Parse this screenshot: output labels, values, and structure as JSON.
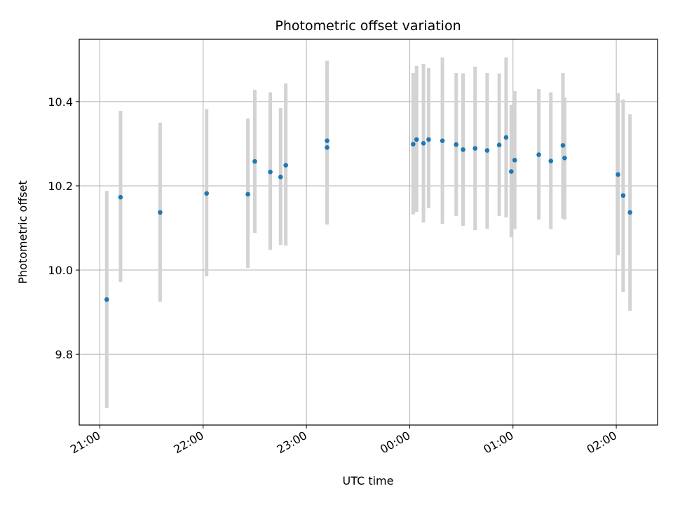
{
  "chart_data": {
    "type": "scatter",
    "title": "Photometric offset variation",
    "xlabel": "UTC time",
    "ylabel": "Photometric offset",
    "x_axis_kind": "time",
    "x_ticks": [
      "21:00",
      "22:00",
      "23:00",
      "00:00",
      "01:00",
      "02:00"
    ],
    "x_tick_hours": [
      21,
      22,
      23,
      24,
      25,
      26
    ],
    "y_ticks": [
      "9.8",
      "10.0",
      "10.2",
      "10.4"
    ],
    "y_tick_values": [
      9.8,
      10.0,
      10.2,
      10.4
    ],
    "xlim": [
      "20:48",
      "02:24"
    ],
    "ylim": [
      9.632,
      10.548
    ],
    "grid": true,
    "colors": {
      "points": "#1f77b4",
      "errorbars": "#d3d3d3",
      "grid": "#b0b0b0"
    },
    "points": [
      {
        "x": "21:04",
        "y": 9.93,
        "ylow": 9.672,
        "yhigh": 10.188
      },
      {
        "x": "21:12",
        "y": 10.173,
        "ylow": 9.972,
        "yhigh": 10.378
      },
      {
        "x": "21:35",
        "y": 10.137,
        "ylow": 9.925,
        "yhigh": 10.35
      },
      {
        "x": "22:02",
        "y": 10.182,
        "ylow": 9.985,
        "yhigh": 10.382
      },
      {
        "x": "22:26",
        "y": 10.18,
        "ylow": 10.005,
        "yhigh": 10.36
      },
      {
        "x": "22:30",
        "y": 10.258,
        "ylow": 10.088,
        "yhigh": 10.428
      },
      {
        "x": "22:39",
        "y": 10.233,
        "ylow": 10.048,
        "yhigh": 10.422
      },
      {
        "x": "22:45",
        "y": 10.221,
        "ylow": 10.06,
        "yhigh": 10.385
      },
      {
        "x": "22:48",
        "y": 10.249,
        "ylow": 10.058,
        "yhigh": 10.443
      },
      {
        "x": "23:12",
        "y": 10.307,
        "ylow": 10.115,
        "yhigh": 10.497
      },
      {
        "x": "23:12",
        "y": 10.291,
        "ylow": 10.108,
        "yhigh": 10.475
      },
      {
        "x": "00:02",
        "y": 10.299,
        "ylow": 10.132,
        "yhigh": 10.468
      },
      {
        "x": "00:04",
        "y": 10.31,
        "ylow": 10.138,
        "yhigh": 10.485
      },
      {
        "x": "00:08",
        "y": 10.301,
        "ylow": 10.113,
        "yhigh": 10.49
      },
      {
        "x": "00:11",
        "y": 10.31,
        "ylow": 10.147,
        "yhigh": 10.48
      },
      {
        "x": "00:19",
        "y": 10.307,
        "ylow": 10.11,
        "yhigh": 10.505
      },
      {
        "x": "00:27",
        "y": 10.298,
        "ylow": 10.128,
        "yhigh": 10.468
      },
      {
        "x": "00:31",
        "y": 10.286,
        "ylow": 10.105,
        "yhigh": 10.467
      },
      {
        "x": "00:38",
        "y": 10.289,
        "ylow": 10.095,
        "yhigh": 10.483
      },
      {
        "x": "00:45",
        "y": 10.284,
        "ylow": 10.098,
        "yhigh": 10.468
      },
      {
        "x": "00:52",
        "y": 10.297,
        "ylow": 10.128,
        "yhigh": 10.467
      },
      {
        "x": "00:56",
        "y": 10.315,
        "ylow": 10.125,
        "yhigh": 10.505
      },
      {
        "x": "00:59",
        "y": 10.234,
        "ylow": 10.078,
        "yhigh": 10.392
      },
      {
        "x": "01:01",
        "y": 10.261,
        "ylow": 10.097,
        "yhigh": 10.425
      },
      {
        "x": "01:15",
        "y": 10.274,
        "ylow": 10.12,
        "yhigh": 10.43
      },
      {
        "x": "01:22",
        "y": 10.259,
        "ylow": 10.097,
        "yhigh": 10.422
      },
      {
        "x": "01:29",
        "y": 10.296,
        "ylow": 10.122,
        "yhigh": 10.468
      },
      {
        "x": "01:30",
        "y": 10.266,
        "ylow": 10.12,
        "yhigh": 10.41
      },
      {
        "x": "02:01",
        "y": 10.227,
        "ylow": 10.035,
        "yhigh": 10.42
      },
      {
        "x": "02:04",
        "y": 10.177,
        "ylow": 9.948,
        "yhigh": 10.405
      },
      {
        "x": "02:08",
        "y": 10.137,
        "ylow": 9.903,
        "yhigh": 10.37
      }
    ]
  }
}
